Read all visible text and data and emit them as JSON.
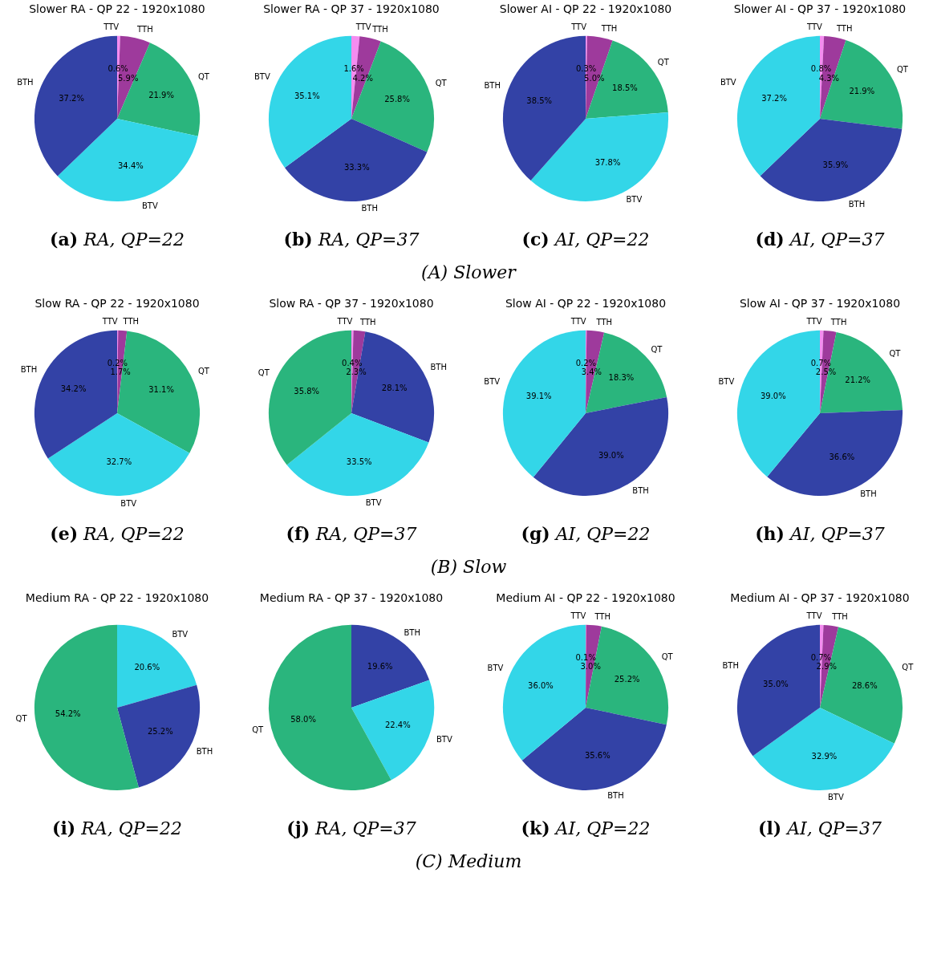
{
  "chart_data": [
    {
      "type": "pie",
      "title": "Slower RA - QP 22 - 1920x1080",
      "categories": [
        "TTV",
        "TTH",
        "QT",
        "BTV",
        "BTH"
      ],
      "values": [
        0.6,
        5.9,
        21.9,
        34.4,
        37.2
      ],
      "value_labels": [
        "0.6%",
        "5.9%",
        "21.9%",
        "34.4%",
        "37.2%"
      ],
      "colors": [
        "#f48cf0",
        "#9e3a9c",
        "#2ab57d",
        "#33d6e8",
        "#3342a6"
      ],
      "annotations": [
        "(a) RA, QP=22",
        "(A) Slower"
      ]
    },
    {
      "type": "pie",
      "title": "Slower RA - QP 37 - 1920x1080",
      "categories": [
        "TTV",
        "TTH",
        "QT",
        "BTH",
        "BTV"
      ],
      "values": [
        1.6,
        4.2,
        25.8,
        33.3,
        35.1
      ],
      "value_labels": [
        "1.6%",
        "4.2%",
        "25.8%",
        "33.3%",
        "35.1%"
      ],
      "colors": [
        "#f48cf0",
        "#9e3a9c",
        "#2ab57d",
        "#3342a6",
        "#33d6e8"
      ],
      "annotations": [
        "(b) RA, QP=37"
      ]
    },
    {
      "type": "pie",
      "title": "Slower AI - QP 22 - 1920x1080",
      "categories": [
        "TTV",
        "TTH",
        "QT",
        "BTV",
        "BTH"
      ],
      "values": [
        0.3,
        5.0,
        18.5,
        37.8,
        38.5
      ],
      "value_labels": [
        "0.3%",
        "5.0%",
        "18.5%",
        "37.8%",
        "38.5%"
      ],
      "colors": [
        "#f48cf0",
        "#9e3a9c",
        "#2ab57d",
        "#33d6e8",
        "#3342a6"
      ],
      "annotations": [
        "(c) AI, QP=22"
      ]
    },
    {
      "type": "pie",
      "title": "Slower AI - QP 37 - 1920x1080",
      "categories": [
        "TTV",
        "TTH",
        "QT",
        "BTH",
        "BTV"
      ],
      "values": [
        0.8,
        4.3,
        21.9,
        35.9,
        37.2
      ],
      "value_labels": [
        "0.8%",
        "4.3%",
        "21.9%",
        "35.9%",
        "37.2%"
      ],
      "colors": [
        "#f48cf0",
        "#9e3a9c",
        "#2ab57d",
        "#3342a6",
        "#33d6e8"
      ],
      "annotations": [
        "(d) AI, QP=37"
      ]
    },
    {
      "type": "pie",
      "title": "Slow RA - QP 22 - 1920x1080",
      "categories": [
        "TTV",
        "TTH",
        "QT",
        "BTV",
        "BTH"
      ],
      "values": [
        0.2,
        1.7,
        31.1,
        32.7,
        34.2
      ],
      "value_labels": [
        "0.2%",
        "1.7%",
        "31.1%",
        "32.7%",
        "34.2%"
      ],
      "colors": [
        "#f48cf0",
        "#9e3a9c",
        "#2ab57d",
        "#33d6e8",
        "#3342a6"
      ],
      "annotations": [
        "(e) RA, QP=22",
        "(B) Slow"
      ]
    },
    {
      "type": "pie",
      "title": "Slow RA - QP 37 - 1920x1080",
      "categories": [
        "TTV",
        "TTH",
        "BTH",
        "BTV",
        "QT"
      ],
      "values": [
        0.4,
        2.3,
        28.1,
        33.5,
        35.8
      ],
      "value_labels": [
        "0.4%",
        "2.3%",
        "28.1%",
        "33.5%",
        "35.8%"
      ],
      "colors": [
        "#f48cf0",
        "#9e3a9c",
        "#3342a6",
        "#33d6e8",
        "#2ab57d"
      ],
      "annotations": [
        "(f) RA, QP=37"
      ]
    },
    {
      "type": "pie",
      "title": "Slow AI - QP 22 - 1920x1080",
      "categories": [
        "TTV",
        "TTH",
        "QT",
        "BTH",
        "BTV"
      ],
      "values": [
        0.2,
        3.4,
        18.3,
        39.0,
        39.1
      ],
      "value_labels": [
        "0.2%",
        "3.4%",
        "18.3%",
        "39.0%",
        "39.1%"
      ],
      "colors": [
        "#f48cf0",
        "#9e3a9c",
        "#2ab57d",
        "#3342a6",
        "#33d6e8"
      ],
      "annotations": [
        "(g) AI, QP=22"
      ]
    },
    {
      "type": "pie",
      "title": "Slow AI - QP 37 - 1920x1080",
      "categories": [
        "TTV",
        "TTH",
        "QT",
        "BTH",
        "BTV"
      ],
      "values": [
        0.7,
        2.5,
        21.2,
        36.6,
        39.0
      ],
      "value_labels": [
        "0.7%",
        "2.5%",
        "21.2%",
        "36.6%",
        "39.0%"
      ],
      "colors": [
        "#f48cf0",
        "#9e3a9c",
        "#2ab57d",
        "#3342a6",
        "#33d6e8"
      ],
      "annotations": [
        "(h) AI, QP=37"
      ]
    },
    {
      "type": "pie",
      "title": "Medium RA - QP 22 - 1920x1080",
      "categories": [
        "BTV",
        "BTH",
        "QT"
      ],
      "values": [
        20.6,
        25.2,
        54.2
      ],
      "value_labels": [
        "20.6%",
        "25.2%",
        "54.2%"
      ],
      "colors": [
        "#33d6e8",
        "#3342a6",
        "#2ab57d"
      ],
      "annotations": [
        "(i) RA, QP=22",
        "(C) Medium"
      ]
    },
    {
      "type": "pie",
      "title": "Medium RA - QP 37 - 1920x1080",
      "categories": [
        "BTH",
        "BTV",
        "QT"
      ],
      "values": [
        19.6,
        22.4,
        58.0
      ],
      "value_labels": [
        "19.6%",
        "22.4%",
        "58.0%"
      ],
      "colors": [
        "#3342a6",
        "#33d6e8",
        "#2ab57d"
      ],
      "annotations": [
        "(j) RA, QP=37"
      ]
    },
    {
      "type": "pie",
      "title": "Medium AI - QP 22 - 1920x1080",
      "categories": [
        "TTV",
        "TTH",
        "QT",
        "BTH",
        "BTV"
      ],
      "values": [
        0.1,
        3.0,
        25.2,
        35.6,
        36.0
      ],
      "value_labels": [
        "0.1%",
        "3.0%",
        "25.2%",
        "35.6%",
        "36.0%"
      ],
      "colors": [
        "#f48cf0",
        "#9e3a9c",
        "#2ab57d",
        "#3342a6",
        "#33d6e8"
      ],
      "annotations": [
        "(k) AI, QP=22"
      ]
    },
    {
      "type": "pie",
      "title": "Medium AI - QP 37 - 1920x1080",
      "categories": [
        "TTV",
        "TTH",
        "QT",
        "BTV",
        "BTH"
      ],
      "values": [
        0.7,
        2.9,
        28.6,
        32.9,
        35.0
      ],
      "value_labels": [
        "0.7%",
        "2.9%",
        "28.6%",
        "32.9%",
        "35.0%"
      ],
      "colors": [
        "#f48cf0",
        "#9e3a9c",
        "#2ab57d",
        "#33d6e8",
        "#3342a6"
      ],
      "annotations": [
        "(l) AI, QP=37"
      ]
    }
  ]
}
